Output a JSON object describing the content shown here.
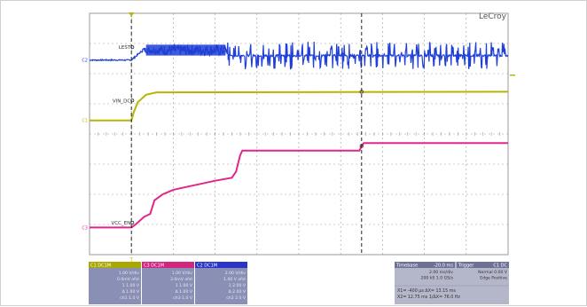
{
  "brand": "LeCroy",
  "markers": {
    "trigger_label": "T",
    "channel_markers": [
      "C2",
      "C1",
      "C3"
    ]
  },
  "colors": {
    "ch1": "#b9b400",
    "ch2": "#1f3fd6",
    "ch3": "#e0268c",
    "grid": "#9a9a9a",
    "cursor": "#222222",
    "panel_bg": "#8a8fb5",
    "panel_header_c1": "#a8a800",
    "panel_header_c2": "#2a35c8",
    "panel_header_c3": "#d1257f",
    "panel_right_bg": "#b4b7c9"
  },
  "chart_data": {
    "type": "line",
    "title": "",
    "xlabel": "",
    "ylabel": "",
    "grid": true,
    "xlim": [
      0,
      10
    ],
    "divisions": {
      "x": 10,
      "y": 8
    },
    "trigger_time_div": 1.0,
    "cursor_time_div": 6.5,
    "series": [
      {
        "name": "C2",
        "color": "#1f3fd6",
        "baseline_div": 6.45,
        "annotation": "LEST",
        "segments": [
          {
            "t0": 0.0,
            "t1": 1.0,
            "level": 6.45,
            "ripple": 0.02
          },
          {
            "t0": 1.0,
            "t1": 1.25,
            "ramp_to": 6.75
          },
          {
            "t0": 1.25,
            "t1": 3.3,
            "level": 6.78,
            "burst_amp": 0.18
          },
          {
            "t0": 3.3,
            "t1": 4.8,
            "level": 6.6,
            "pulse_amp": 0.45
          },
          {
            "t0": 4.8,
            "t1": 10.0,
            "level": 6.6,
            "pulse_amp": 0.45
          }
        ]
      },
      {
        "name": "C1",
        "color": "#b9b400",
        "baseline_div": 4.45,
        "annotation": "VIN_DC",
        "points": [
          [
            0.0,
            4.45
          ],
          [
            1.0,
            4.45
          ],
          [
            1.05,
            4.7
          ],
          [
            1.15,
            5.05
          ],
          [
            1.35,
            5.3
          ],
          [
            1.6,
            5.38
          ],
          [
            10.0,
            5.4
          ]
        ]
      },
      {
        "name": "C3",
        "color": "#e0268c",
        "baseline_div": 0.9,
        "annotation": "VCC_EN",
        "points": [
          [
            0.0,
            0.9
          ],
          [
            1.0,
            0.9
          ],
          [
            1.1,
            1.0
          ],
          [
            1.3,
            1.25
          ],
          [
            1.45,
            1.35
          ],
          [
            1.55,
            1.8
          ],
          [
            1.75,
            2.0
          ],
          [
            2.0,
            2.15
          ],
          [
            2.5,
            2.3
          ],
          [
            3.0,
            2.45
          ],
          [
            3.4,
            2.55
          ],
          [
            3.5,
            2.75
          ],
          [
            3.6,
            3.3
          ],
          [
            3.65,
            3.45
          ],
          [
            6.45,
            3.45
          ],
          [
            6.5,
            3.6
          ],
          [
            6.55,
            3.7
          ],
          [
            10.0,
            3.7
          ]
        ]
      }
    ],
    "annotations": [
      "LEST",
      "VIN_DC",
      "VCC_EN"
    ]
  },
  "panels": {
    "channels": [
      {
        "id": "C1",
        "header": "C1 DC1M",
        "rows": [
          "1.00 V/div",
          "0.0mV ofst",
          "1 1.00 V",
          "Δ 1.00 V",
          "ch1 1.0 V"
        ]
      },
      {
        "id": "C3",
        "header": "C3 DC1M",
        "rows": [
          "1.00 V/div",
          "3.0mV ofst",
          "1 1.00 V",
          "Δ 1.00 V",
          "ch3 1.0 V"
        ]
      },
      {
        "id": "C2",
        "header": "C2 DC1M",
        "rows": [
          "2.00 V/div",
          "1.00 V ofst",
          "1 2.00 V",
          "Δ 2.00 V",
          "ch2 2.0 V"
        ]
      }
    ],
    "timebase": {
      "header": "Timebase",
      "header_value": "-20.0 ms",
      "rows": [
        "2.00 ms/div",
        "200 kS  1.0 GS/s"
      ]
    },
    "trigger": {
      "header": "Trigger",
      "header_value": "C1 DC",
      "rows": [
        "Normal  0.00 V",
        "Edge  Positive"
      ]
    },
    "cursor_rows": [
      "X1= -400 μs  ΔX= 13.15 ms",
      "X2= 12.75 ms  1/ΔX= 76.0 Hz"
    ]
  }
}
